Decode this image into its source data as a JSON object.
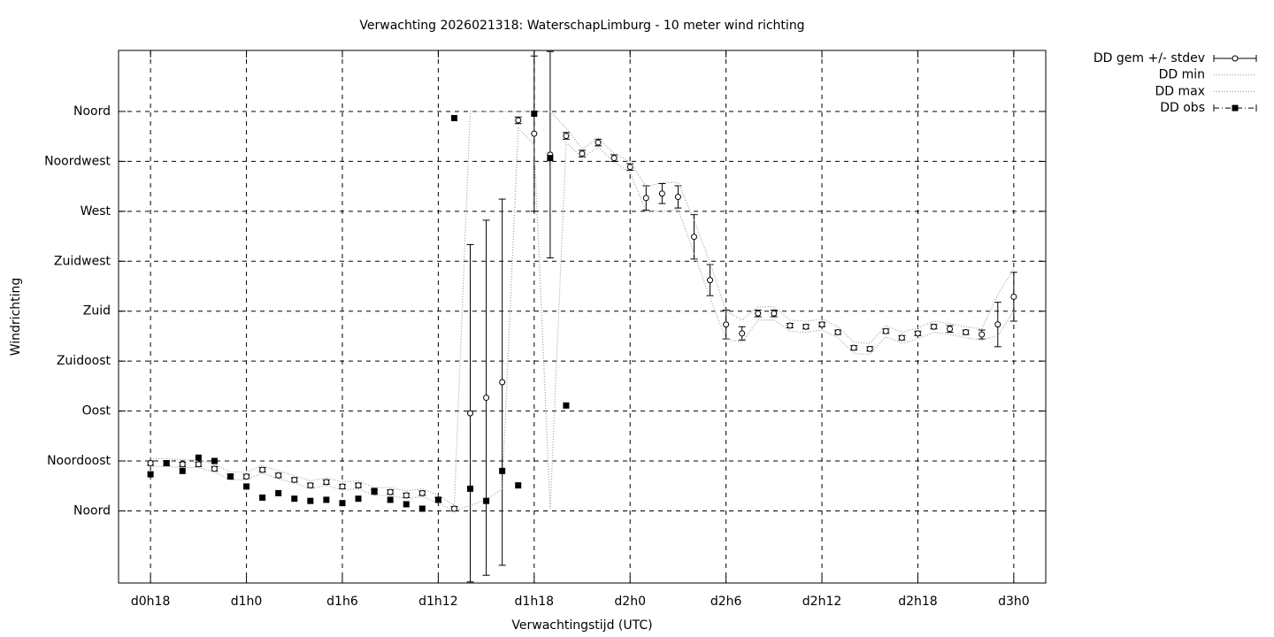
{
  "chart_data": {
    "type": "errorbar",
    "title": "Verwachting 2026021318: WaterschapLimburg - 10 meter wind richting",
    "x_label": "Verwachtingstijd (UTC)",
    "y_label": "Windrichting",
    "x": [
      18,
      19,
      20,
      21,
      22,
      23,
      24,
      25,
      26,
      27,
      28,
      29,
      30,
      31,
      32,
      33,
      34,
      35,
      36,
      37,
      38,
      39,
      40,
      41,
      42,
      43,
      44,
      45,
      46,
      47,
      48,
      49,
      50,
      51,
      52,
      53,
      54,
      55,
      56,
      57,
      58,
      59,
      60,
      61,
      62,
      63,
      64,
      65,
      66,
      67,
      68,
      69,
      70,
      71,
      72
    ],
    "series": [
      {
        "name": "DD gem +/- stdev",
        "color": "#000000",
        "style": "errorbar",
        "values": [
          43,
          43,
          42,
          42,
          38,
          31,
          31,
          37,
          32,
          28,
          23,
          26,
          22,
          23,
          17,
          17,
          14,
          16,
          10,
          2,
          88,
          102,
          116,
          352,
          340,
          321,
          338,
          322,
          332,
          318,
          310,
          282,
          286,
          283,
          247,
          208,
          168,
          160,
          178,
          178,
          167,
          166,
          168,
          161,
          147,
          146,
          162,
          156,
          160,
          166,
          164,
          161,
          159,
          168,
          193
        ],
        "errors": [
          2,
          2,
          2,
          2,
          2,
          2,
          2,
          2,
          2,
          2,
          2,
          2,
          2,
          2,
          2,
          2,
          2,
          2,
          2,
          2,
          152,
          160,
          165,
          3,
          70,
          93,
          3,
          3,
          3,
          3,
          3,
          11,
          9,
          10,
          20,
          14,
          13,
          6,
          3,
          3,
          2,
          2,
          2,
          2,
          2,
          2,
          2,
          2,
          2,
          2,
          3,
          2,
          4,
          20,
          22
        ]
      },
      {
        "name": "DD min",
        "color": "#a0a0a0",
        "style": "dotted",
        "values": [
          40,
          40,
          39,
          39,
          35,
          28,
          28,
          34,
          29,
          25,
          20,
          23,
          19,
          20,
          14,
          14,
          11,
          13,
          7,
          0,
          5,
          10,
          20,
          345,
          330,
          2,
          332,
          318,
          328,
          314,
          305,
          270,
          270,
          272,
          232,
          192,
          155,
          152,
          172,
          172,
          162,
          161,
          163,
          156,
          142,
          141,
          157,
          151,
          155,
          161,
          159,
          156,
          154,
          158,
          180
        ]
      },
      {
        "name": "DD max",
        "color": "#a0a0a0",
        "style": "dotted",
        "values": [
          47,
          47,
          46,
          46,
          42,
          35,
          35,
          41,
          36,
          32,
          27,
          30,
          26,
          27,
          21,
          21,
          18,
          20,
          14,
          5,
          360,
          360,
          360,
          360,
          360,
          360,
          345,
          326,
          336,
          322,
          315,
          292,
          296,
          296,
          262,
          224,
          180,
          172,
          184,
          184,
          172,
          171,
          173,
          166,
          152,
          151,
          167,
          161,
          165,
          171,
          169,
          166,
          164,
          195,
          218
        ]
      },
      {
        "name": "DD obs",
        "color": "#000000",
        "style": "points",
        "values": [
          33,
          43,
          36,
          48,
          45,
          31,
          22,
          12,
          16,
          11,
          9,
          10,
          7,
          11,
          18,
          10,
          6,
          2,
          10,
          354,
          20,
          9,
          36,
          23,
          358,
          318,
          95,
          null,
          null,
          null,
          null,
          null,
          null,
          null,
          null,
          null,
          null,
          null,
          null,
          null,
          null,
          null,
          null,
          null,
          null,
          null,
          null,
          null,
          null,
          null,
          null,
          null,
          null,
          null,
          null
        ]
      }
    ],
    "xlim": [
      16,
      74
    ],
    "xticks": [
      {
        "value": 18,
        "label": "d0h18"
      },
      {
        "value": 24,
        "label": "d1h0"
      },
      {
        "value": 30,
        "label": "d1h6"
      },
      {
        "value": 36,
        "label": "d1h12"
      },
      {
        "value": 42,
        "label": "d1h18"
      },
      {
        "value": 48,
        "label": "d2h0"
      },
      {
        "value": 54,
        "label": "d2h6"
      },
      {
        "value": 60,
        "label": "d2h12"
      },
      {
        "value": 66,
        "label": "d2h18"
      },
      {
        "value": 72,
        "label": "d3h0"
      }
    ],
    "ylim": [
      -65,
      415
    ],
    "yticks": [
      {
        "value": 0,
        "label": "Noord"
      },
      {
        "value": 45,
        "label": "Noordoost"
      },
      {
        "value": 90,
        "label": "Oost"
      },
      {
        "value": 135,
        "label": "Zuidoost"
      },
      {
        "value": 180,
        "label": "Zuid"
      },
      {
        "value": 225,
        "label": "Zuidwest"
      },
      {
        "value": 270,
        "label": "West"
      },
      {
        "value": 315,
        "label": "Noordwest"
      },
      {
        "value": 360,
        "label": "Noord"
      }
    ],
    "grid": true,
    "legend_position": "outside top right"
  }
}
